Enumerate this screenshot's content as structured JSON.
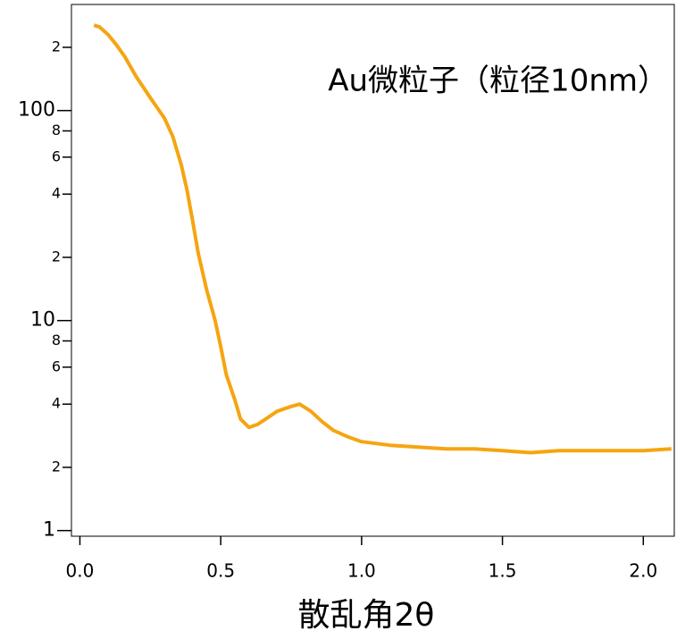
{
  "chart_data": {
    "type": "line",
    "title": "Au微粒子（粒径10nm）",
    "x_label": "散乱角2θ",
    "log_y": true,
    "color": "#f5a511",
    "xlim": [
      -0.03,
      2.11
    ],
    "ylim": [
      0.94,
      320
    ],
    "xticks": [
      {
        "value": 0,
        "label": "0.0"
      },
      0.5,
      {
        "value": 1,
        "label": "1.0"
      },
      1.5,
      {
        "value": 2,
        "label": "2.0"
      }
    ],
    "yticks": [
      1,
      2,
      4,
      6,
      8,
      10,
      {
        "value": 20,
        "label": "2"
      },
      {
        "value": 40,
        "label": "4"
      },
      {
        "value": 60,
        "label": "6"
      },
      {
        "value": 80,
        "label": "8"
      },
      100,
      {
        "value": 200,
        "label": "2"
      }
    ],
    "x": [
      0.05,
      0.07,
      0.1,
      0.13,
      0.16,
      0.2,
      0.25,
      0.3,
      0.33,
      0.36,
      0.38,
      0.4,
      0.42,
      0.45,
      0.48,
      0.5,
      0.52,
      0.55,
      0.57,
      0.6,
      0.63,
      0.66,
      0.7,
      0.75,
      0.78,
      0.82,
      0.86,
      0.9,
      0.95,
      1.0,
      1.1,
      1.2,
      1.3,
      1.4,
      1.5,
      1.6,
      1.7,
      1.8,
      1.9,
      2.0,
      2.1
    ],
    "values": [
      255,
      250,
      230,
      205,
      180,
      145,
      115,
      92,
      75,
      55,
      42,
      30,
      21,
      14,
      10,
      7.5,
      5.5,
      4.2,
      3.4,
      3.1,
      3.2,
      3.4,
      3.7,
      3.9,
      4.0,
      3.7,
      3.3,
      3.0,
      2.8,
      2.65,
      2.55,
      2.5,
      2.45,
      2.45,
      2.4,
      2.35,
      2.4,
      2.4,
      2.4,
      2.4,
      2.45
    ]
  }
}
